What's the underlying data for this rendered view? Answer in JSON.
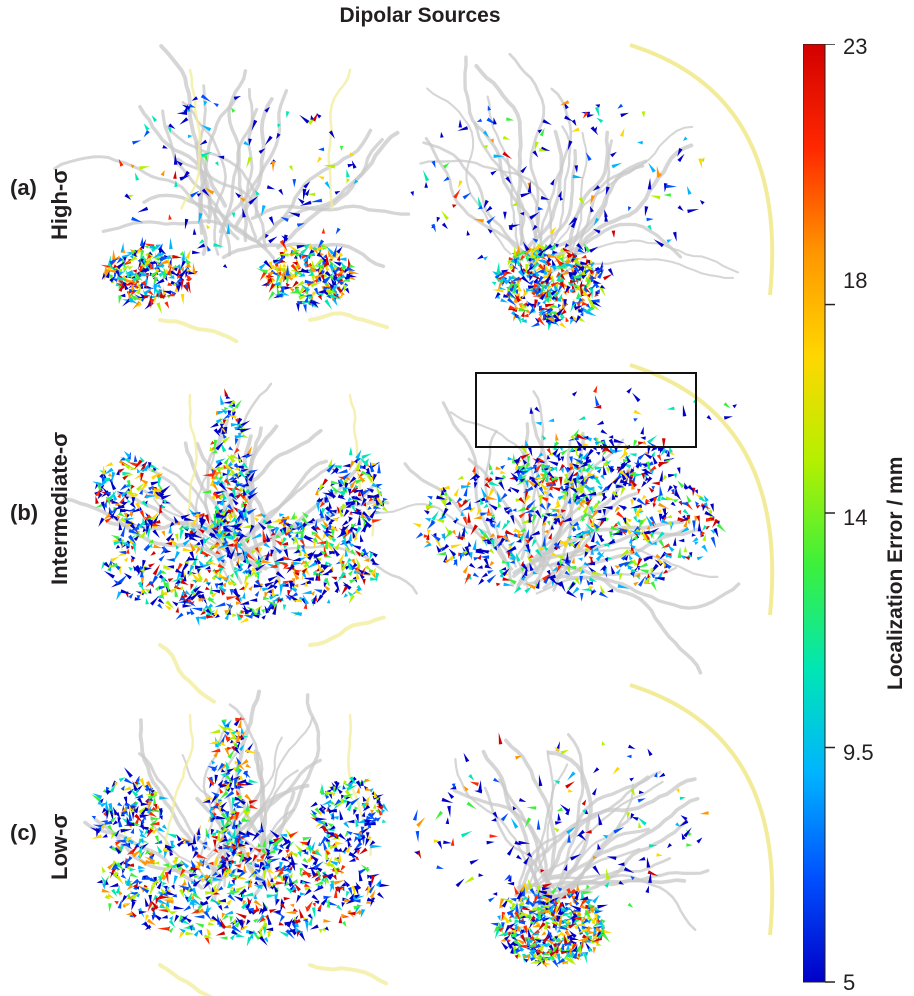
{
  "title": "Dipolar Sources",
  "rows": [
    {
      "letter": "(a)",
      "sigma": "High-σ"
    },
    {
      "letter": "(b)",
      "sigma": "Intermediate-σ"
    },
    {
      "letter": "(c)",
      "sigma": "Low-σ"
    }
  ],
  "colorbar": {
    "label": "Localization Error / mm",
    "min": 5,
    "max": 23,
    "ticks": [
      "23",
      "18",
      "14",
      "9.5",
      "5"
    ],
    "colormap": [
      "#0000c8",
      "#0050ff",
      "#00b4ff",
      "#00e6b4",
      "#3cf03c",
      "#b4f000",
      "#ffd700",
      "#ff9600",
      "#ff2800",
      "#d20000"
    ]
  },
  "colors": {
    "vessel_gray": "#c8c8c8",
    "vessel_yellow": "#f2ec9a"
  }
}
